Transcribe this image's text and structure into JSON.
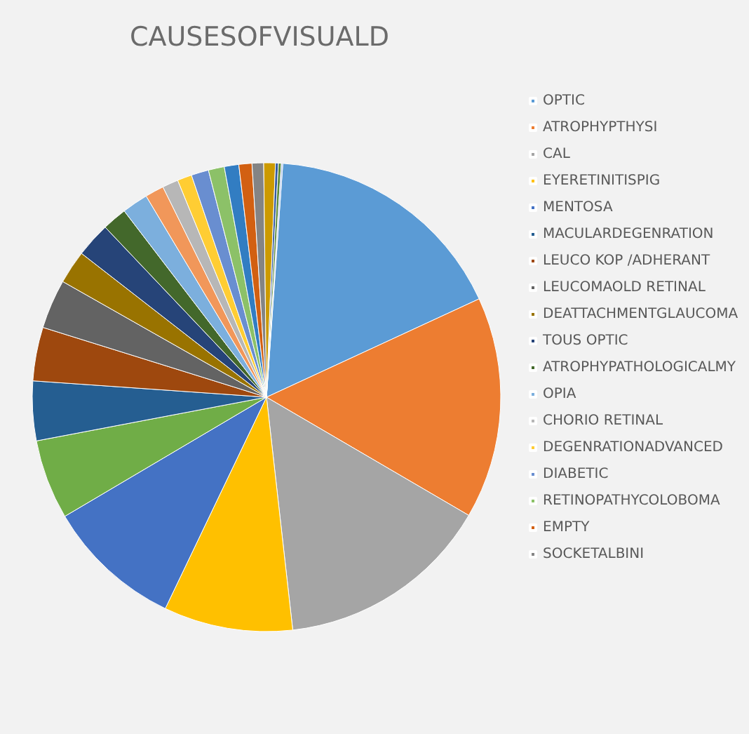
{
  "chart_data": {
    "type": "pie",
    "title": "CAUSESOFVISUALD",
    "categories": [
      "OPTIC",
      "ATROPHYPTHYSI",
      "CAL",
      "EYERETINITISPIG",
      "MENTOSA",
      null,
      "MACULARDEGENRATION",
      "LEUCO KOP /ADHERANT",
      "LEUCOMAOLD RETINAL",
      "DEATTACHMENTGLAUCOMA",
      "TOUS OPTIC",
      "ATROPHYPATHOLOGICALMY",
      "OPIA",
      null,
      "CHORIO RETINAL",
      "DEGENRATIONADVANCED",
      "DIABETIC",
      "RETINOPATHYCOLOBOMA",
      null,
      "EMPTY",
      "SOCKETALBINI",
      null,
      null,
      null,
      null
    ],
    "values": [
      17,
      15.3,
      14.8,
      8.9,
      9.4,
      5.5,
      4.1,
      3.7,
      3.4,
      2.3,
      2.4,
      1.7,
      1.8,
      1.3,
      1.1,
      1.0,
      1.2,
      1.1,
      1.0,
      0.9,
      0.8,
      0.8,
      0.2,
      0.2,
      0.1
    ],
    "colors": [
      "#5b9bd5",
      "#ed7d31",
      "#a5a5a5",
      "#ffc000",
      "#4472c4",
      "#70ad47",
      "#255e91",
      "#9e480e",
      "#636363",
      "#997300",
      "#264478",
      "#43682b",
      "#7cafdd",
      "#f1975a",
      "#b7b7b7",
      "#ffcd33",
      "#698ed0",
      "#8cc168",
      "#327dc2",
      "#d26012",
      "#848484",
      "#cc9a00",
      "#335aa1",
      "#5a8a39",
      "#a2b8e1"
    ],
    "legend": "right"
  }
}
